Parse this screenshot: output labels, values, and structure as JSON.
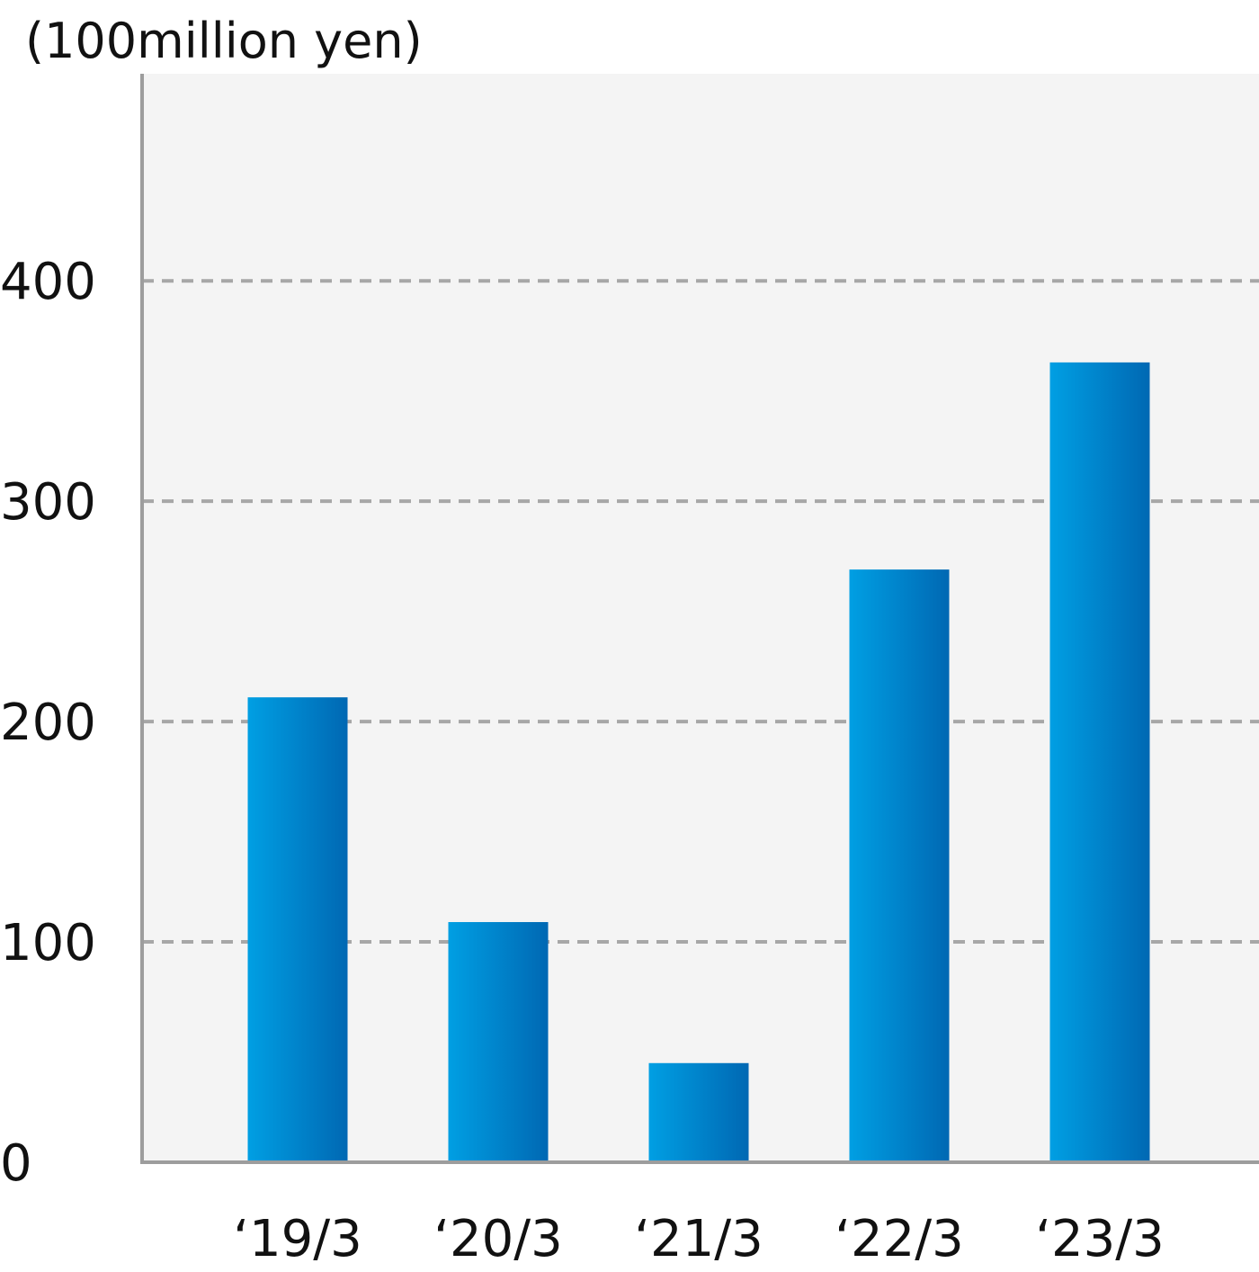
{
  "chart_data": {
    "type": "bar",
    "unit_label": "(100million yen)",
    "categories": [
      "‘19/3",
      "‘20/3",
      "‘21/3",
      "‘22/3",
      "‘23/3"
    ],
    "values": [
      211,
      109,
      45,
      269,
      363
    ],
    "yticks": [
      0,
      100,
      200,
      300,
      400
    ],
    "ylim": [
      0,
      494
    ],
    "grid": {
      "y": true,
      "style": "dashed"
    },
    "colors": {
      "bar_light": "#009fe3",
      "bar_dark": "#0068b3",
      "plot_background": "#f4f4f4",
      "grid": "#a7a7a7",
      "axis": "#9d9d9d"
    }
  }
}
